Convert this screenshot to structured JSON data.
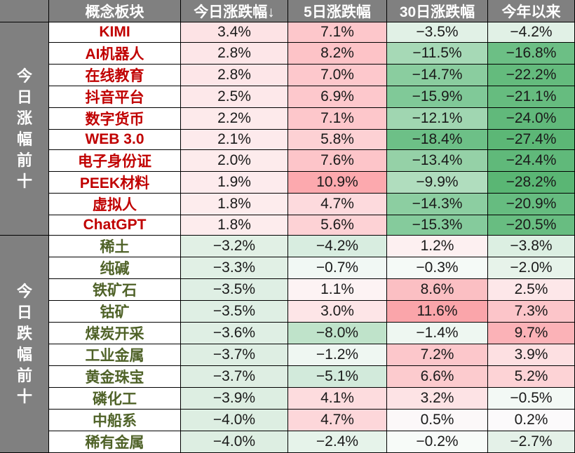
{
  "table": {
    "headers": [
      "",
      "概念板块",
      "今日涨跌幅↓",
      "5日涨跌幅",
      "30日涨跌幅",
      "今年以来"
    ],
    "groups": [
      {
        "label": "今日涨幅前十",
        "chars": [
          "今",
          "日",
          "涨",
          "幅",
          "前",
          "十"
        ],
        "type": "up",
        "rows": [
          {
            "name": "KIMI",
            "today": "3.4%",
            "d5": "7.1%",
            "d30": "−3.5%",
            "ytd": "−4.2%",
            "colors": [
              "#fde3e5",
              "#fdc7cb",
              "#e1f1e6",
              "#e1f1e6"
            ]
          },
          {
            "name": "AI机器人",
            "today": "2.8%",
            "d5": "8.2%",
            "d30": "−11.5%",
            "ytd": "−16.8%",
            "colors": [
              "#fde6e8",
              "#fdc3c7",
              "#a6d9b6",
              "#6cbf85"
            ]
          },
          {
            "name": "在线教育",
            "today": "2.8%",
            "d5": "7.0%",
            "d30": "−14.7%",
            "ytd": "−22.2%",
            "colors": [
              "#fde6e8",
              "#fdc8cc",
              "#8acd9f",
              "#64bb7d"
            ]
          },
          {
            "name": "抖音平台",
            "today": "2.5%",
            "d5": "6.9%",
            "d30": "−15.9%",
            "ytd": "−21.1%",
            "colors": [
              "#fde8ea",
              "#fdc8cc",
              "#80c998",
              "#66bc7f"
            ]
          },
          {
            "name": "数字货币",
            "today": "2.2%",
            "d5": "7.1%",
            "d30": "−12.1%",
            "ytd": "−24.0%",
            "colors": [
              "#fdeaeb",
              "#fdc7cb",
              "#a0d6b1",
              "#61b97b"
            ]
          },
          {
            "name": "WEB 3.0",
            "today": "2.1%",
            "d5": "5.8%",
            "d30": "−18.4%",
            "ytd": "−27.4%",
            "colors": [
              "#fdeaec",
              "#fdd1d4",
              "#6dc087",
              "#5cb776"
            ]
          },
          {
            "name": "电子身份证",
            "today": "2.0%",
            "d5": "7.6%",
            "d30": "−13.4%",
            "ytd": "−24.4%",
            "colors": [
              "#fdebec",
              "#fdc5c9",
              "#95d1a7",
              "#60b97a"
            ]
          },
          {
            "name": "PEEK材料",
            "today": "1.9%",
            "d5": "10.9%",
            "d30": "−9.9%",
            "ytd": "−28.2%",
            "colors": [
              "#fdebed",
              "#fca9ae",
              "#b0ddbe",
              "#5ab674"
            ]
          },
          {
            "name": "虚拟人",
            "today": "1.8%",
            "d5": "4.7%",
            "d30": "−14.3%",
            "ytd": "−20.9%",
            "colors": [
              "#fdeced",
              "#fddadd",
              "#8ccea1",
              "#66bc80"
            ]
          },
          {
            "name": "ChatGPT",
            "today": "1.8%",
            "d5": "5.6%",
            "d30": "−15.3%",
            "ytd": "−20.5%",
            "colors": [
              "#fdeced",
              "#fdd2d5",
              "#85cb9c",
              "#68bd81"
            ]
          }
        ]
      },
      {
        "label": "今日跌幅前十",
        "chars": [
          "今",
          "日",
          "跌",
          "幅",
          "前",
          "十"
        ],
        "type": "down",
        "rows": [
          {
            "name": "稀土",
            "today": "−3.2%",
            "d5": "−4.2%",
            "d30": "1.2%",
            "ytd": "−3.8%",
            "colors": [
              "#e1f0e5",
              "#d8ede0",
              "#fdf0f1",
              "#dcefe2"
            ]
          },
          {
            "name": "纯碱",
            "today": "−3.3%",
            "d5": "−0.7%",
            "d30": "−0.3%",
            "ytd": "−2.0%",
            "colors": [
              "#e1f0e5",
              "#f1f8f4",
              "#f5faf7",
              "#e7f3ea"
            ]
          },
          {
            "name": "铁矿石",
            "today": "−3.5%",
            "d5": "1.1%",
            "d30": "8.6%",
            "ytd": "2.5%",
            "colors": [
              "#dfefe4",
              "#fdf3f4",
              "#fbbfc3",
              "#fde7e9"
            ]
          },
          {
            "name": "钴矿",
            "today": "−3.5%",
            "d5": "3.0%",
            "d30": "11.6%",
            "ytd": "7.3%",
            "colors": [
              "#dfefe4",
              "#fde5e7",
              "#faa5aa",
              "#fcc5c9"
            ]
          },
          {
            "name": "煤炭开采",
            "today": "−3.6%",
            "d5": "−8.0%",
            "d30": "−1.4%",
            "ytd": "9.7%",
            "colors": [
              "#dfefe4",
              "#bfe3ca",
              "#eef7f1",
              "#fbb2b7"
            ]
          },
          {
            "name": "工业金属",
            "today": "−3.7%",
            "d5": "−1.2%",
            "d30": "7.2%",
            "ytd": "3.9%",
            "colors": [
              "#deeee3",
              "#eff7f2",
              "#fcc7cb",
              "#fde0e2"
            ]
          },
          {
            "name": "黄金珠宝",
            "today": "−3.7%",
            "d5": "−5.1%",
            "d30": "6.6%",
            "ytd": "5.2%",
            "colors": [
              "#deeee3",
              "#d2eadb",
              "#fccbce",
              "#fdd3d6"
            ]
          },
          {
            "name": "磷化工",
            "today": "−3.9%",
            "d5": "4.1%",
            "d30": "3.2%",
            "ytd": "−0.5%",
            "colors": [
              "#ddeee2",
              "#fddcde",
              "#fde3e5",
              "#f3f9f5"
            ]
          },
          {
            "name": "中船系",
            "today": "−4.0%",
            "d5": "4.7%",
            "d30": "0.5%",
            "ytd": "0.2%",
            "colors": [
              "#ddeee2",
              "#fdd7da",
              "#fcf8f9",
              "#fcfafb"
            ]
          },
          {
            "name": "稀有金属",
            "today": "−4.0%",
            "d5": "−2.4%",
            "d30": "−0.2%",
            "ytd": "−2.7%",
            "colors": [
              "#ddeee2",
              "#e6f3ea",
              "#f7fbf8",
              "#e4f1e8"
            ]
          }
        ]
      }
    ]
  }
}
